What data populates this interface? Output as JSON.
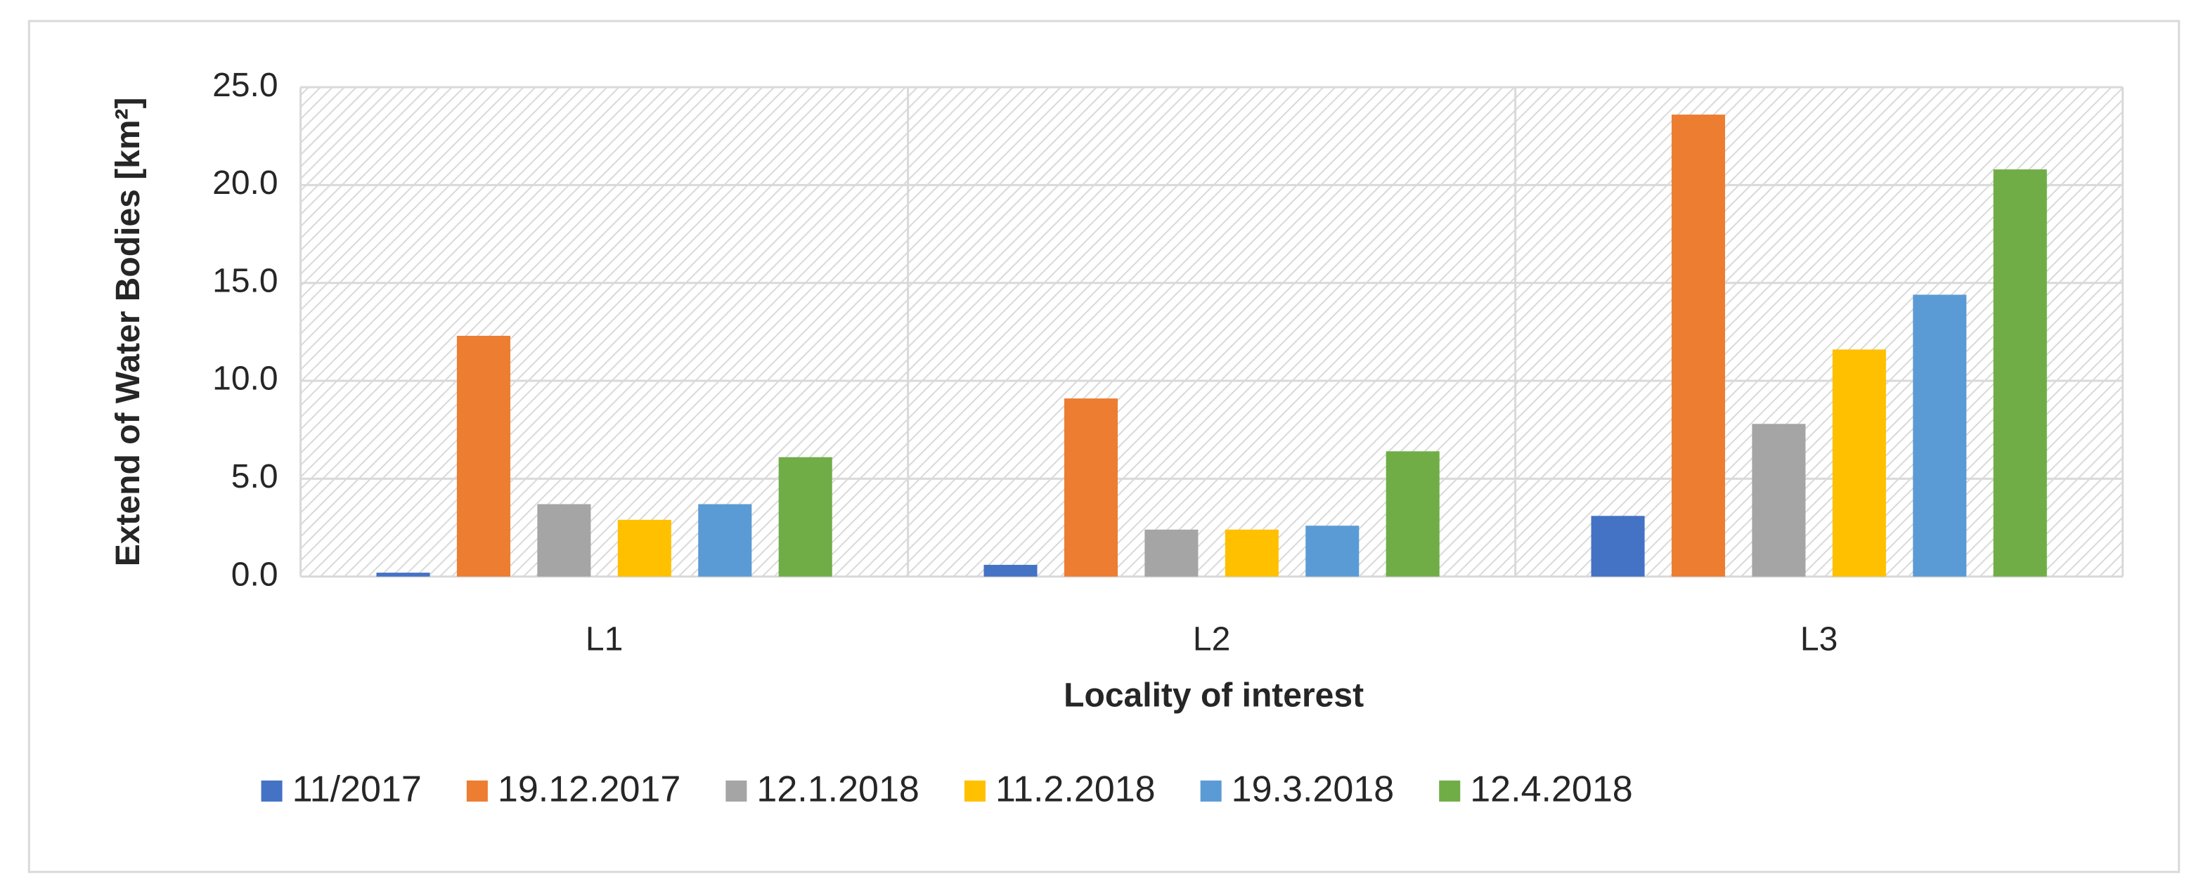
{
  "chart_data": {
    "type": "bar",
    "x_label": "Locality of interest",
    "y_label": "Extend of Water Bodies [km²]",
    "categories": [
      "L1",
      "L2",
      "L3"
    ],
    "series": [
      {
        "name": "11/2017",
        "color": "#4472c4",
        "values": [
          0.2,
          0.6,
          3.1
        ]
      },
      {
        "name": "19.12.2017",
        "color": "#ed7d31",
        "values": [
          12.3,
          9.1,
          23.6
        ]
      },
      {
        "name": "12.1.2018",
        "color": "#a5a5a5",
        "values": [
          3.7,
          2.4,
          7.8
        ]
      },
      {
        "name": "11.2.2018",
        "color": "#ffc000",
        "values": [
          2.9,
          2.4,
          11.6
        ]
      },
      {
        "name": "19.3.2018",
        "color": "#5b9bd5",
        "values": [
          3.7,
          2.6,
          14.4
        ]
      },
      {
        "name": "12.4.2018",
        "color": "#70ad47",
        "values": [
          6.1,
          6.4,
          20.8
        ]
      }
    ],
    "ylim": [
      0,
      25
    ],
    "yticks": [
      {
        "value": 0,
        "label": "0.0"
      },
      {
        "value": 5,
        "label": "5.0"
      },
      {
        "value": 10,
        "label": "10.0"
      },
      {
        "value": 15,
        "label": "15.0"
      },
      {
        "value": 20,
        "label": "20.0"
      },
      {
        "value": 25,
        "label": "25.0"
      }
    ],
    "grid": true,
    "legend": "bottom"
  }
}
